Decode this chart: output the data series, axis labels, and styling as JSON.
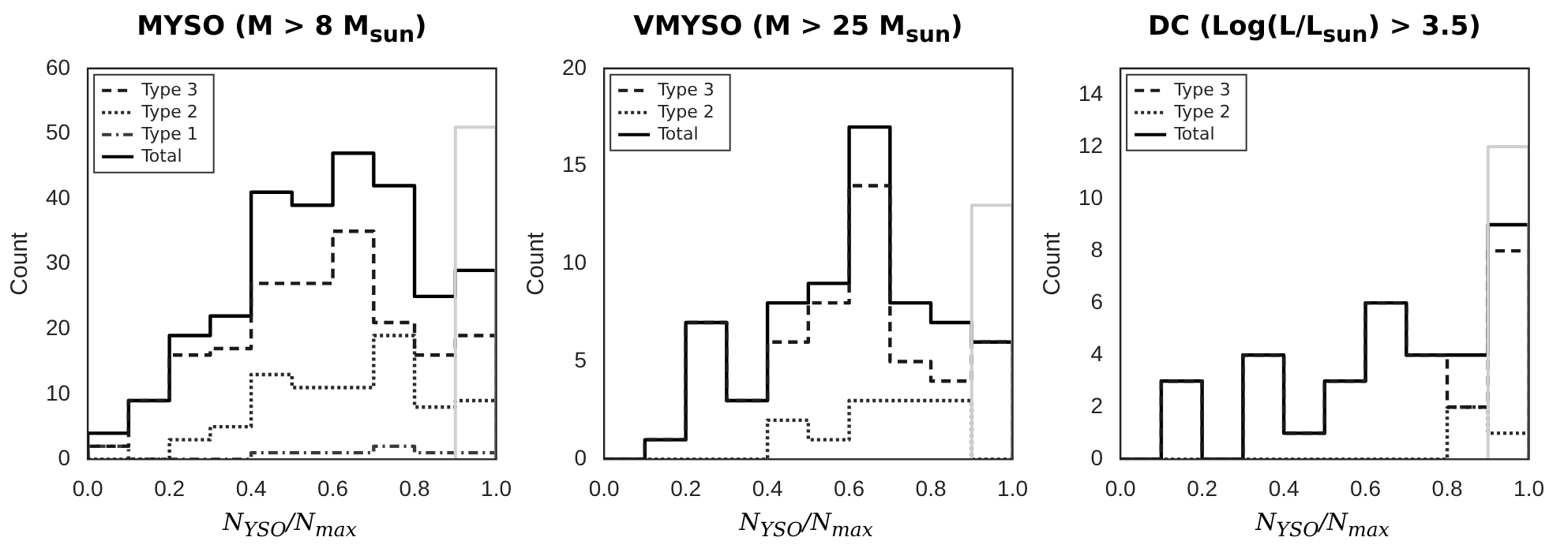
{
  "chart_data": [
    {
      "type": "histogram",
      "title": "MYSO (M > 8 M$_{sun}$)",
      "xlabel": "N$_{YSO}$/N$_{max}$",
      "ylabel": "Count",
      "bins": [
        0,
        0.1,
        0.2,
        0.3,
        0.4,
        0.5,
        0.6,
        0.7,
        0.8,
        0.9,
        1.0
      ],
      "legend": "top left",
      "grid": false,
      "xlim": [
        0,
        1
      ],
      "xticks": [
        {
          "value": 0,
          "label": "0.0"
        },
        {
          "value": 0.2,
          "label": "0.2"
        },
        {
          "value": 0.4,
          "label": "0.4"
        },
        {
          "value": 0.6,
          "label": "0.6"
        },
        {
          "value": 0.8,
          "label": "0.8"
        },
        {
          "value": 1,
          "label": "1.0"
        }
      ],
      "ylim": [
        0,
        60
      ],
      "yticks": [
        0,
        10,
        20,
        30,
        40,
        50,
        60
      ],
      "series": [
        {
          "color": "#d0d0d0",
          "line_style": "solid",
          "bins": [
            0.9,
            1.0
          ],
          "values": [
            51
          ]
        },
        {
          "name": "Type 3",
          "color": "#1a1a1a",
          "line_style": "dashed",
          "values": [
            2,
            9,
            16,
            17,
            27,
            27,
            35,
            21,
            16,
            19
          ]
        },
        {
          "name": "Type 2",
          "color": "#2a2a2a",
          "line_style": "dotted",
          "values": [
            0,
            0,
            3,
            5,
            13,
            11,
            11,
            19,
            8,
            9
          ]
        },
        {
          "name": "Type 1",
          "color": "#3a3a3a",
          "line_style": "dashdot",
          "values": [
            2,
            0,
            0,
            0,
            1,
            1,
            1,
            2,
            1,
            1
          ]
        },
        {
          "name": "Total",
          "color": "#000000",
          "line_style": "solid",
          "values": [
            4,
            9,
            19,
            22,
            41,
            39,
            47,
            42,
            25,
            29
          ]
        }
      ]
    },
    {
      "type": "histogram",
      "title": "VMYSO (M > 25 M$_{sun}$)",
      "xlabel": "N$_{YSO}$/N$_{max}$",
      "ylabel": "Count",
      "bins": [
        0,
        0.1,
        0.2,
        0.3,
        0.4,
        0.5,
        0.6,
        0.7,
        0.8,
        0.9,
        1.0
      ],
      "legend": "top left",
      "grid": false,
      "xlim": [
        0,
        1
      ],
      "xticks": [
        {
          "value": 0,
          "label": "0.0"
        },
        {
          "value": 0.2,
          "label": "0.2"
        },
        {
          "value": 0.4,
          "label": "0.4"
        },
        {
          "value": 0.6,
          "label": "0.6"
        },
        {
          "value": 0.8,
          "label": "0.8"
        },
        {
          "value": 1,
          "label": "1.0"
        }
      ],
      "ylim": [
        0,
        20
      ],
      "yticks": [
        0,
        5,
        10,
        15,
        20
      ],
      "series": [
        {
          "color": "#d0d0d0",
          "line_style": "solid",
          "bins": [
            0.9,
            1.0
          ],
          "values": [
            13
          ]
        },
        {
          "name": "Type 3",
          "color": "#1a1a1a",
          "line_style": "dashed",
          "values": [
            0,
            1,
            7,
            3,
            6,
            8,
            14,
            5,
            4,
            6
          ]
        },
        {
          "name": "Type 2",
          "color": "#2a2a2a",
          "line_style": "dotted",
          "values": [
            0,
            0,
            0,
            0,
            2,
            1,
            3,
            3,
            3,
            0
          ]
        },
        {
          "name": "Total",
          "color": "#000000",
          "line_style": "solid",
          "values": [
            0,
            1,
            7,
            3,
            8,
            9,
            17,
            8,
            7,
            6
          ]
        }
      ]
    },
    {
      "type": "histogram",
      "title": "DC (Log(L/L$_{sun}$) > 3.5)",
      "xlabel": "N$_{YSO}$/N$_{max}$",
      "ylabel": "Count",
      "bins": [
        0,
        0.1,
        0.2,
        0.3,
        0.4,
        0.5,
        0.6,
        0.7,
        0.8,
        0.9,
        1.0
      ],
      "legend": "top left",
      "grid": false,
      "xlim": [
        0,
        1
      ],
      "xticks": [
        {
          "value": 0,
          "label": "0.0"
        },
        {
          "value": 0.2,
          "label": "0.2"
        },
        {
          "value": 0.4,
          "label": "0.4"
        },
        {
          "value": 0.6,
          "label": "0.6"
        },
        {
          "value": 0.8,
          "label": "0.8"
        },
        {
          "value": 1,
          "label": "1.0"
        }
      ],
      "ylim": [
        0,
        15
      ],
      "yticks": [
        0,
        2,
        4,
        6,
        8,
        10,
        12,
        14
      ],
      "series": [
        {
          "color": "#d0d0d0",
          "line_style": "solid",
          "bins": [
            0.9,
            1.0
          ],
          "values": [
            12
          ]
        },
        {
          "name": "Type 3",
          "color": "#1a1a1a",
          "line_style": "dashed",
          "values": [
            0,
            3,
            0,
            4,
            1,
            3,
            6,
            4,
            2,
            8
          ]
        },
        {
          "name": "Type 2",
          "color": "#2a2a2a",
          "line_style": "dotted",
          "values": [
            0,
            0,
            0,
            0,
            0,
            0,
            0,
            0,
            2,
            1
          ]
        },
        {
          "name": "Total",
          "color": "#000000",
          "line_style": "solid",
          "values": [
            0,
            3,
            0,
            4,
            1,
            3,
            6,
            4,
            4,
            9
          ]
        }
      ]
    }
  ]
}
